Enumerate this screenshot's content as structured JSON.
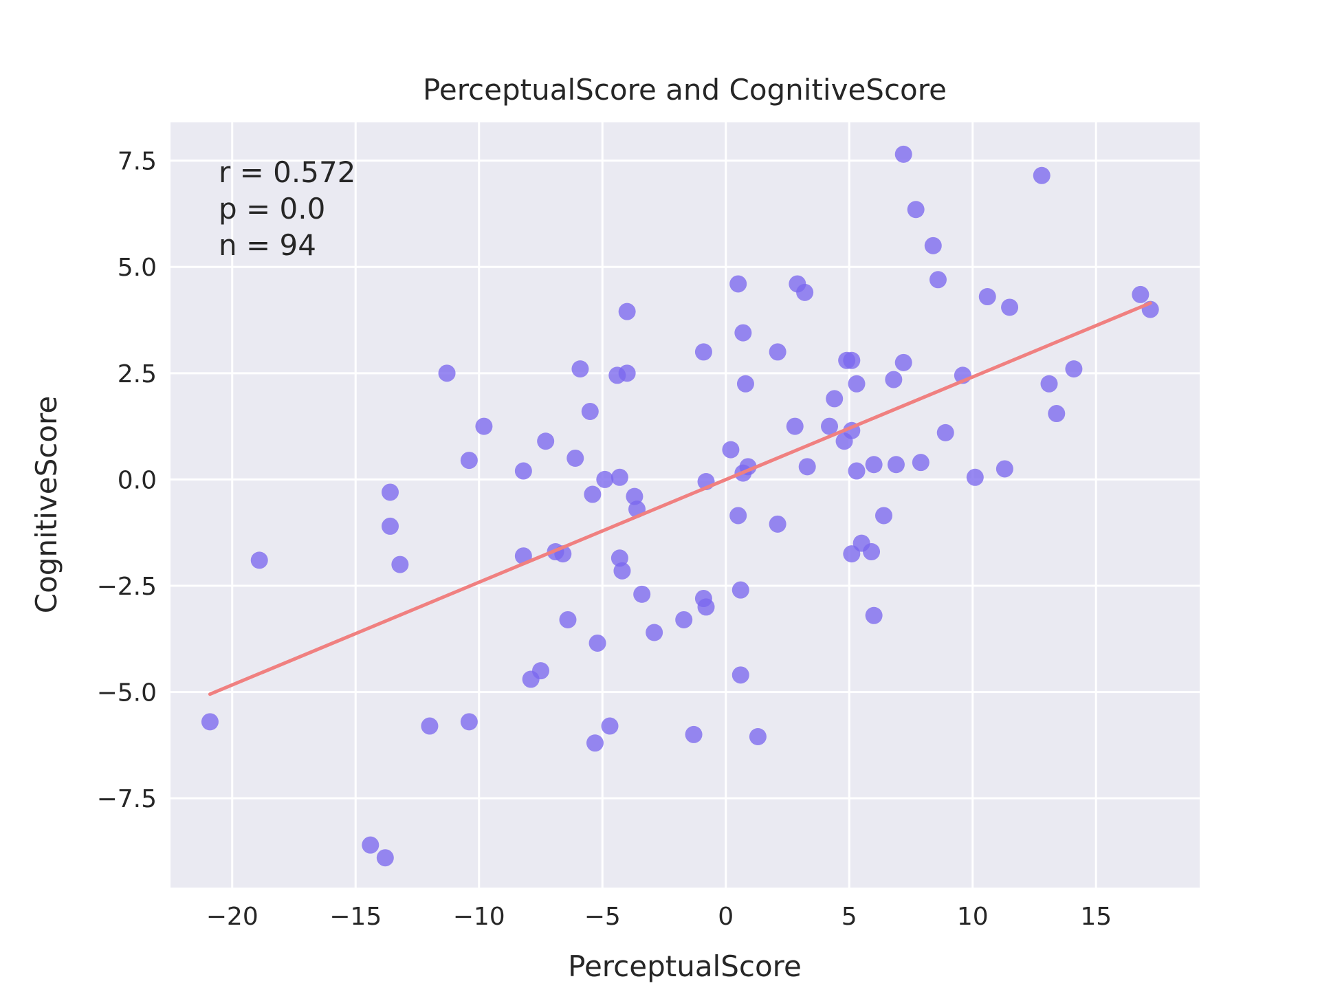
{
  "chart_data": {
    "type": "scatter",
    "title": "PerceptualScore and CognitiveScore",
    "xlabel": "PerceptualScore",
    "ylabel": "CognitiveScore",
    "xlim": [
      -22.5,
      19.2
    ],
    "ylim": [
      -9.6,
      8.4
    ],
    "xticks": [
      -20,
      -15,
      -10,
      -5,
      0,
      5,
      10,
      15
    ],
    "xtick_labels": [
      "−20",
      "−15",
      "−10",
      "−5",
      "0",
      "5",
      "10",
      "15"
    ],
    "yticks": [
      -7.5,
      -5.0,
      -2.5,
      0.0,
      2.5,
      5.0,
      7.5
    ],
    "ytick_labels": [
      "−7.5",
      "−5.0",
      "−2.5",
      "0.0",
      "2.5",
      "5.0",
      "7.5"
    ],
    "grid": true,
    "annotations": [
      "r = 0.572",
      "p = 0.0",
      "n = 94"
    ],
    "colors": {
      "background": "#eaeaf2",
      "grid": "#ffffff",
      "points": "#7b68ee",
      "fit_line": "#f08080"
    },
    "fit_line": {
      "x": [
        -20.9,
        17.2
      ],
      "y": [
        -5.05,
        4.15
      ]
    },
    "points": [
      [
        -20.9,
        -5.7
      ],
      [
        -18.9,
        -1.9
      ],
      [
        -14.4,
        -8.6
      ],
      [
        -13.8,
        -8.9
      ],
      [
        -13.6,
        -0.3
      ],
      [
        -13.6,
        -1.1
      ],
      [
        -13.2,
        -2.0
      ],
      [
        -12.0,
        -5.8
      ],
      [
        -11.3,
        2.5
      ],
      [
        -10.4,
        0.45
      ],
      [
        -10.4,
        -5.7
      ],
      [
        -9.8,
        1.25
      ],
      [
        -8.2,
        0.2
      ],
      [
        -8.2,
        -1.8
      ],
      [
        -7.9,
        -4.7
      ],
      [
        -7.5,
        -4.5
      ],
      [
        -7.3,
        0.9
      ],
      [
        -6.9,
        -1.7
      ],
      [
        -6.6,
        -1.75
      ],
      [
        -6.4,
        -3.3
      ],
      [
        -6.1,
        0.5
      ],
      [
        -5.9,
        2.6
      ],
      [
        -5.5,
        1.6
      ],
      [
        -5.4,
        -0.35
      ],
      [
        -5.3,
        -6.2
      ],
      [
        -5.2,
        -3.85
      ],
      [
        -4.9,
        0.0
      ],
      [
        -4.7,
        -5.8
      ],
      [
        -4.4,
        2.45
      ],
      [
        -4.3,
        0.05
      ],
      [
        -4.3,
        -1.85
      ],
      [
        -4.2,
        -2.15
      ],
      [
        -4.0,
        3.95
      ],
      [
        -4.0,
        2.5
      ],
      [
        -3.7,
        -0.4
      ],
      [
        -3.6,
        -0.7
      ],
      [
        -3.4,
        -2.7
      ],
      [
        -2.9,
        -3.6
      ],
      [
        -1.7,
        -3.3
      ],
      [
        -1.3,
        -6.0
      ],
      [
        -0.9,
        -2.8
      ],
      [
        -0.9,
        3.0
      ],
      [
        -0.8,
        -3.0
      ],
      [
        -0.8,
        -0.05
      ],
      [
        0.2,
        0.7
      ],
      [
        0.5,
        4.6
      ],
      [
        0.5,
        -0.85
      ],
      [
        0.6,
        -4.6
      ],
      [
        0.6,
        -2.6
      ],
      [
        0.7,
        3.45
      ],
      [
        0.7,
        0.15
      ],
      [
        0.8,
        2.25
      ],
      [
        0.9,
        0.3
      ],
      [
        1.3,
        -6.05
      ],
      [
        2.1,
        3.0
      ],
      [
        2.1,
        -1.05
      ],
      [
        2.8,
        1.25
      ],
      [
        2.9,
        4.6
      ],
      [
        3.2,
        4.4
      ],
      [
        3.3,
        0.3
      ],
      [
        4.2,
        1.25
      ],
      [
        4.4,
        1.9
      ],
      [
        4.8,
        0.9
      ],
      [
        4.9,
        2.8
      ],
      [
        5.1,
        2.8
      ],
      [
        5.1,
        1.15
      ],
      [
        5.1,
        -1.75
      ],
      [
        5.3,
        2.25
      ],
      [
        5.3,
        0.2
      ],
      [
        5.5,
        -1.5
      ],
      [
        5.9,
        -1.7
      ],
      [
        6.0,
        0.35
      ],
      [
        6.0,
        -3.2
      ],
      [
        6.4,
        -0.85
      ],
      [
        6.8,
        2.35
      ],
      [
        6.9,
        0.35
      ],
      [
        7.2,
        2.75
      ],
      [
        7.2,
        7.65
      ],
      [
        7.7,
        6.35
      ],
      [
        7.9,
        0.4
      ],
      [
        8.4,
        5.5
      ],
      [
        8.6,
        4.7
      ],
      [
        8.9,
        1.1
      ],
      [
        9.6,
        2.45
      ],
      [
        10.1,
        0.05
      ],
      [
        10.6,
        4.3
      ],
      [
        11.3,
        0.25
      ],
      [
        11.5,
        4.05
      ],
      [
        12.8,
        7.15
      ],
      [
        13.1,
        2.25
      ],
      [
        13.4,
        1.55
      ],
      [
        14.1,
        2.6
      ],
      [
        16.8,
        4.35
      ],
      [
        17.2,
        4.0
      ]
    ]
  }
}
